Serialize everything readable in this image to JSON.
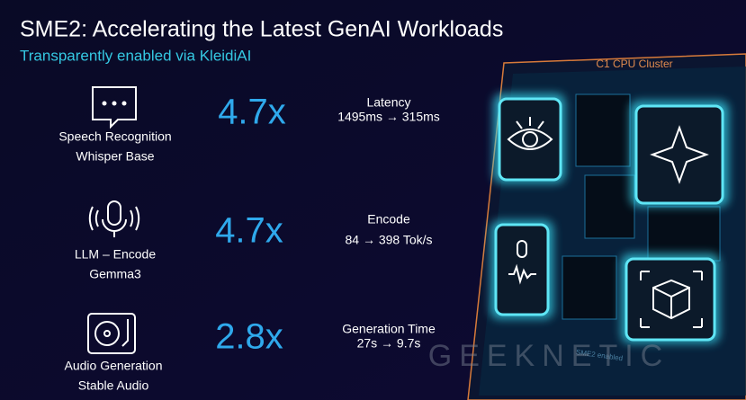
{
  "header": {
    "title": "SME2: Accelerating the Latest GenAI Workloads",
    "subtitle": "Transparently enabled via KleidiAI"
  },
  "rows": [
    {
      "name": "Speech Recognition",
      "model": "Whisper Base",
      "speedup": "4.7x",
      "metric": "Latency",
      "detail": "1495ms → 315ms"
    },
    {
      "name": "LLM – Encode",
      "model": "Gemma3",
      "speedup": "4.7x",
      "metric": "Encode",
      "detail": "84 → 398 Tok/s"
    },
    {
      "name": "Audio Generation",
      "model": "Stable Audio",
      "speedup": "2.8x",
      "metric": "Generation Time",
      "detail": "27s → 9.7s"
    }
  ],
  "chip": {
    "label": "C1 CPU Cluster",
    "caption": "SME2 enabled"
  },
  "watermark": "GEEKNETIC"
}
